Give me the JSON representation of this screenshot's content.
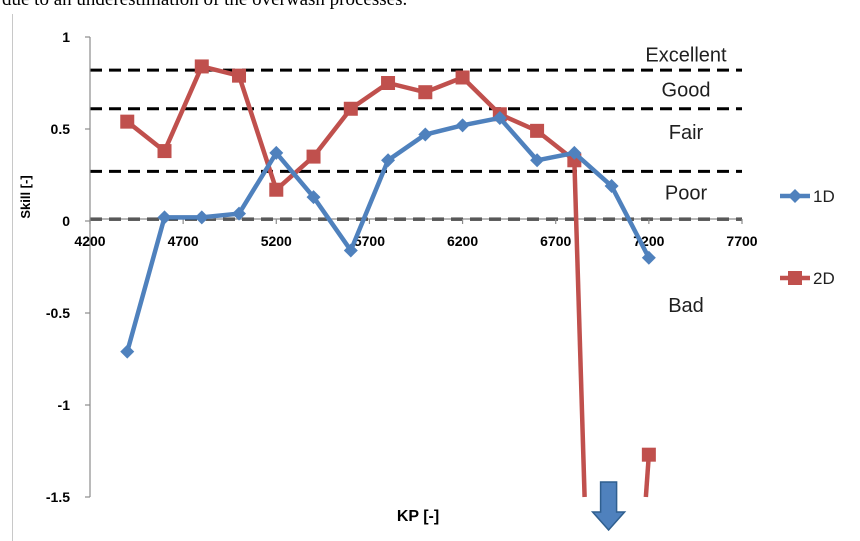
{
  "caption": "due to an underestimation of the overwash processes.",
  "chart_data": {
    "type": "line",
    "xlabel": "KP [-]",
    "ylabel": "Skill [-]",
    "xlim": [
      4200,
      7700
    ],
    "ylim": [
      -1.5,
      1
    ],
    "x_ticks": [
      "4200",
      "4700",
      "5200",
      "5700",
      "6200",
      "6700",
      "7200",
      "7700"
    ],
    "y_ticks": [
      "1",
      "0.5",
      "0",
      "-0.5",
      "-1",
      "-1.5"
    ],
    "legend_position": "right",
    "thresholds": [
      {
        "value": 0.82
      },
      {
        "value": 0.61
      },
      {
        "value": 0.27
      },
      {
        "value": 0.01
      }
    ],
    "zone_labels": [
      {
        "label": "Excellent",
        "value": 0.91
      },
      {
        "label": "Good",
        "value": 0.72
      },
      {
        "label": "Fair",
        "value": 0.49
      },
      {
        "label": "Poor",
        "value": 0.16
      },
      {
        "label": "Bad",
        "value": -0.45
      }
    ],
    "series": [
      {
        "name": "1D",
        "color": "#4f81bd",
        "marker": "diamond",
        "points": [
          [
            4400,
            -0.71
          ],
          [
            4600,
            0.02
          ],
          [
            4800,
            0.02
          ],
          [
            5000,
            0.04
          ],
          [
            5200,
            0.37
          ],
          [
            5400,
            0.13
          ],
          [
            5600,
            -0.16
          ],
          [
            5800,
            0.33
          ],
          [
            6000,
            0.47
          ],
          [
            6200,
            0.52
          ],
          [
            6400,
            0.56
          ],
          [
            6600,
            0.33
          ],
          [
            6800,
            0.37
          ],
          [
            7000,
            0.19
          ],
          [
            7200,
            -0.2
          ]
        ]
      },
      {
        "name": "2D",
        "color": "#c0504d",
        "marker": "square",
        "points": [
          [
            4400,
            0.54
          ],
          [
            4600,
            0.38
          ],
          [
            4800,
            0.84
          ],
          [
            5000,
            0.79
          ],
          [
            5200,
            0.17
          ],
          [
            5400,
            0.35
          ],
          [
            5600,
            0.61
          ],
          [
            5800,
            0.75
          ],
          [
            6000,
            0.7
          ],
          [
            6200,
            0.78
          ],
          [
            6400,
            0.58
          ],
          [
            6600,
            0.49
          ],
          [
            6800,
            0.33
          ]
        ],
        "off_scale_points": [
          [
            7000,
            -1.5
          ],
          [
            7200,
            -1.27
          ]
        ],
        "off_scale_marker_point": [
          7200,
          -1.27
        ]
      }
    ],
    "off_scale_arrow": {
      "color": "#4f81bd",
      "direction": "down",
      "x": 7000
    }
  }
}
